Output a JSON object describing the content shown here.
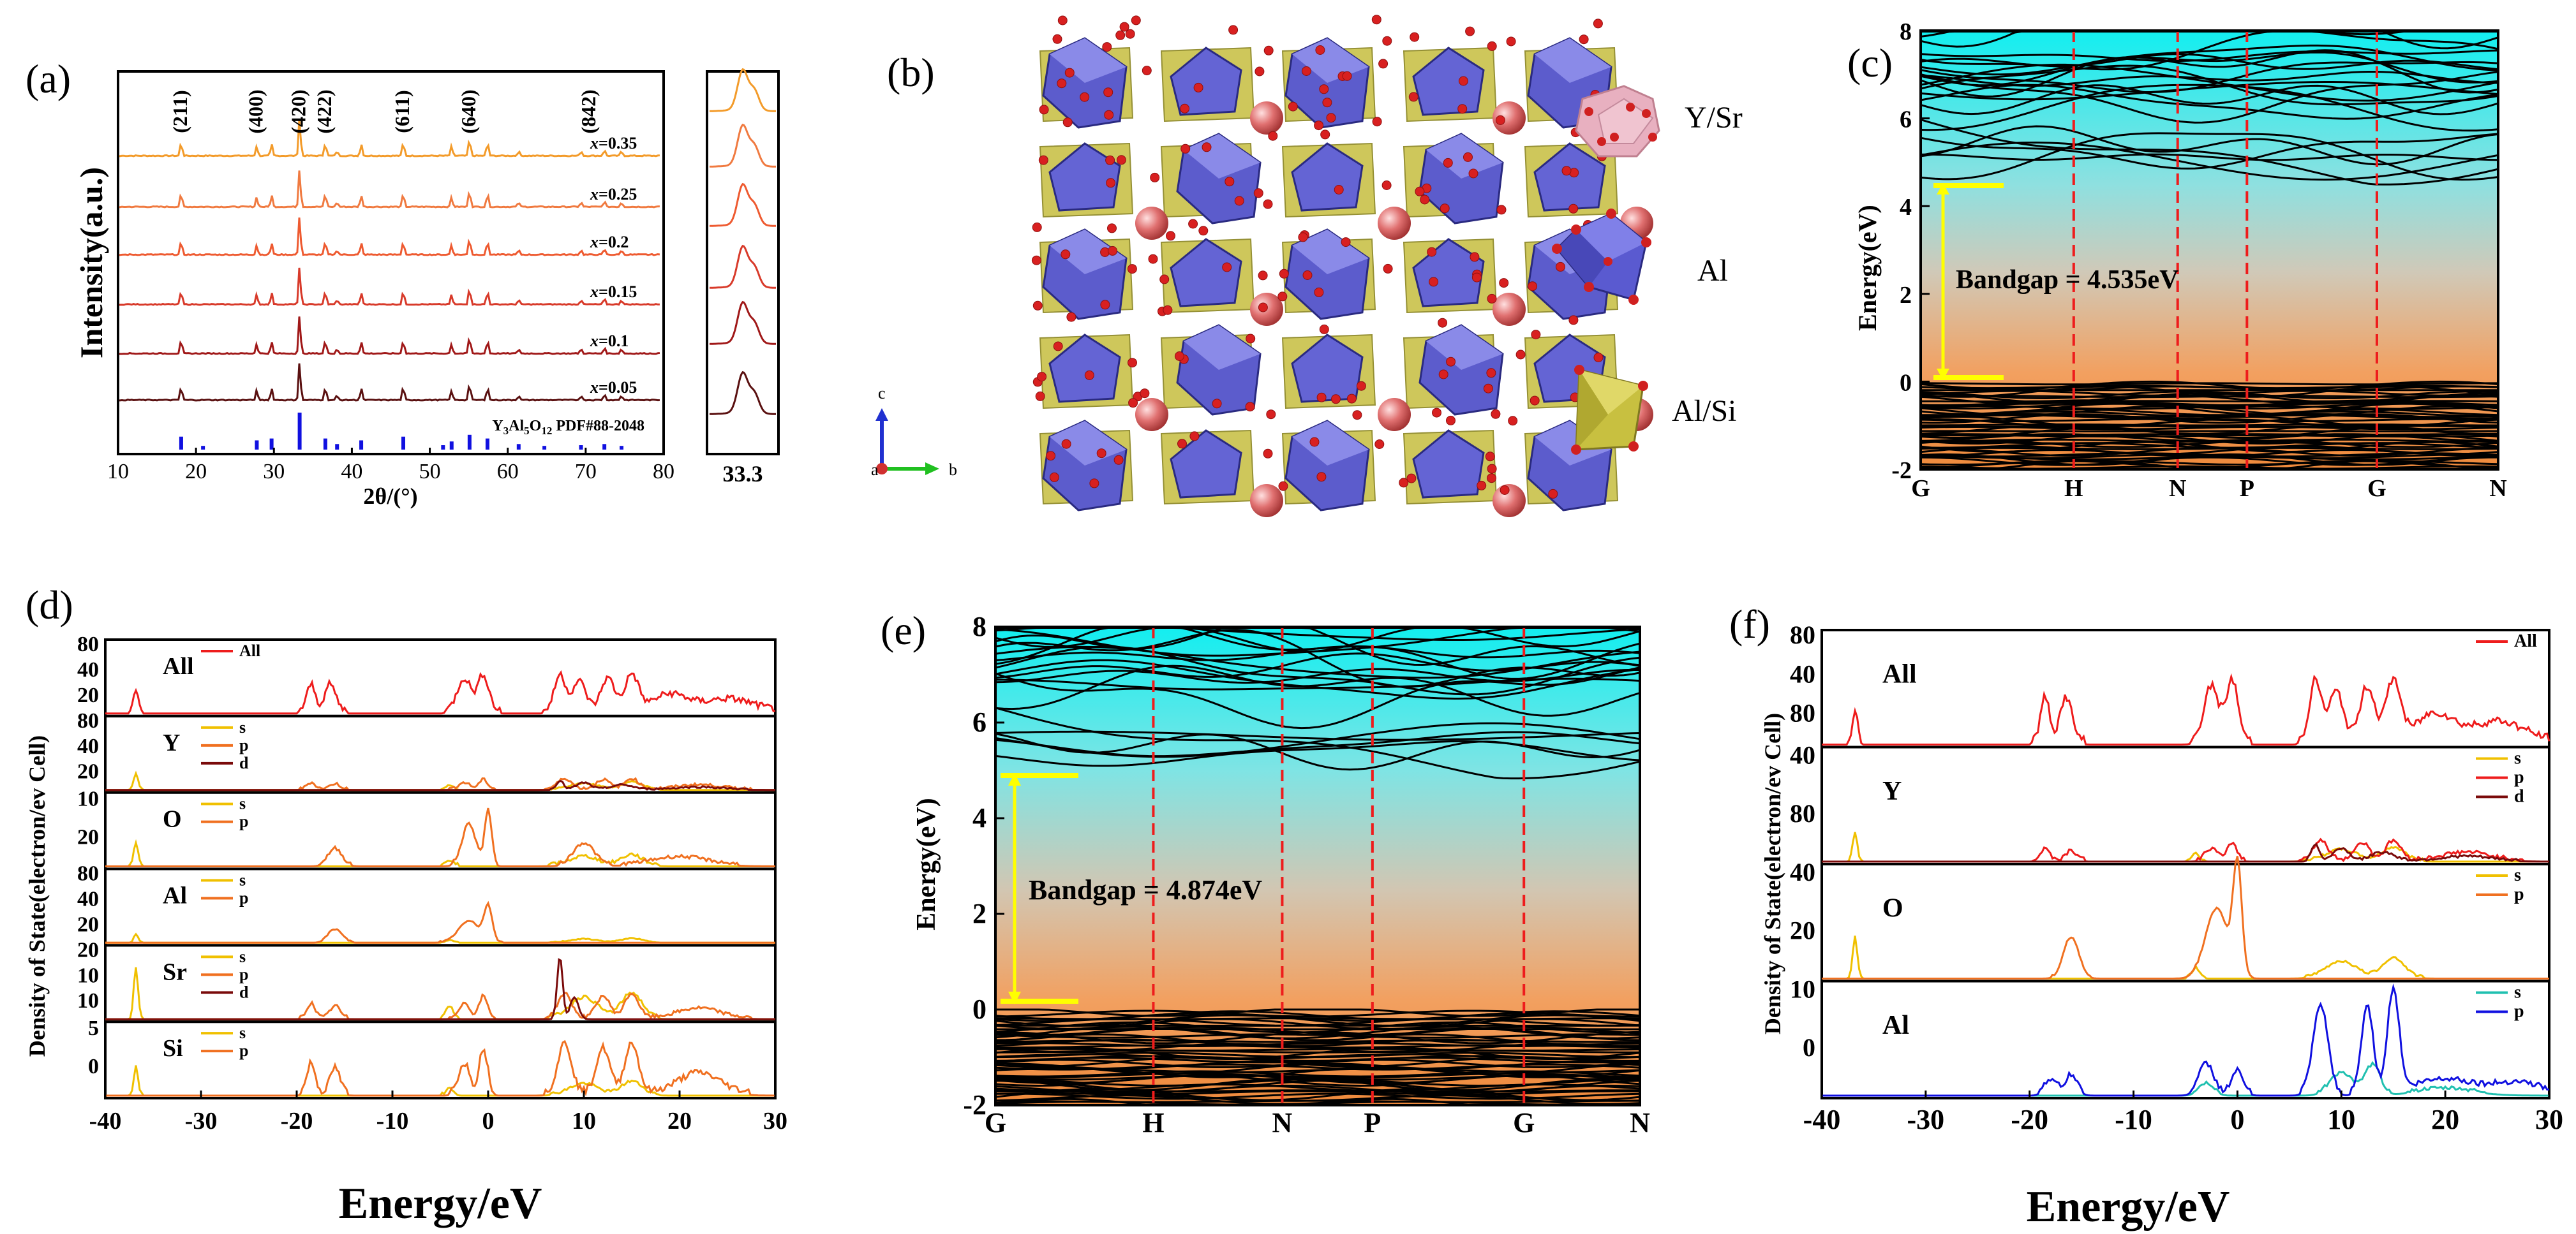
{
  "panels": {
    "a": "(a)",
    "b": "(b)",
    "c": "(c)",
    "d": "(d)",
    "e": "(e)",
    "f": "(f)"
  },
  "colors": {
    "red": "#ee1c1c",
    "orange": "#f07020",
    "yellow": "#f0c000",
    "darkred": "#7a0a0a",
    "cyan": "#20c0b0",
    "blue": "#1010e0",
    "xrd_ref": "#1010e0",
    "kline": "#ee1c1c",
    "gap_arrow": "#ffff00"
  },
  "structure": {
    "legend": [
      "Y/Sr",
      "Al",
      "Al/Si"
    ],
    "axes": {
      "c": "c",
      "a": "a",
      "b": "b"
    }
  },
  "chart_data": [
    {
      "type": "line",
      "title": "",
      "xlabel": "2θ/(°)",
      "ylabel": "Intensity(a.u.)",
      "xlim": [
        10,
        80
      ],
      "x_ticks": [
        "10",
        "20",
        "30",
        "40",
        "50",
        "60",
        "70",
        "80"
      ],
      "series": [
        {
          "name": "x=0.35",
          "color": "#f39b2a"
        },
        {
          "name": "x=0.25",
          "color": "#f07a40"
        },
        {
          "name": "x=0.2",
          "color": "#ee5a30"
        },
        {
          "name": "x=0.15",
          "color": "#d83a2a"
        },
        {
          "name": "x=0.1",
          "color": "#a01818"
        },
        {
          "name": "x=0.05",
          "color": "#5a1010"
        }
      ],
      "peak_labels": [
        {
          "label": "(211)",
          "x": 18.1
        },
        {
          "label": "(400)",
          "x": 27.8
        },
        {
          "label": "(420)",
          "x": 33.3
        },
        {
          "label": "(422)",
          "x": 36.6
        },
        {
          "label": "(611)",
          "x": 46.6
        },
        {
          "label": "(640)",
          "x": 55.1
        },
        {
          "label": "(842)",
          "x": 70.5
        }
      ],
      "peaks": [
        [
          18.1,
          0.35
        ],
        [
          27.8,
          0.25
        ],
        [
          29.7,
          0.3
        ],
        [
          33.3,
          1.0
        ],
        [
          36.6,
          0.35
        ],
        [
          38.1,
          0.12
        ],
        [
          41.2,
          0.3
        ],
        [
          46.6,
          0.35
        ],
        [
          52.8,
          0.25
        ],
        [
          55.1,
          0.45
        ],
        [
          57.4,
          0.35
        ],
        [
          61.4,
          0.12
        ],
        [
          69.4,
          0.12
        ],
        [
          72.4,
          0.15
        ],
        [
          74.6,
          0.12
        ]
      ],
      "reference": {
        "formula_1": "Y",
        "formula_2": "3",
        "formula_3": "Al",
        "formula_4": "5",
        "formula_5": "O",
        "formula_6": "12",
        "pdf": " PDF#88-2048",
        "sticks": [
          [
            18.1,
            0.35
          ],
          [
            20.9,
            0.1
          ],
          [
            27.8,
            0.25
          ],
          [
            29.7,
            0.3
          ],
          [
            33.3,
            1.0
          ],
          [
            36.6,
            0.3
          ],
          [
            38.1,
            0.15
          ],
          [
            41.2,
            0.25
          ],
          [
            46.6,
            0.35
          ],
          [
            51.7,
            0.12
          ],
          [
            52.8,
            0.22
          ],
          [
            55.1,
            0.4
          ],
          [
            57.4,
            0.3
          ],
          [
            61.4,
            0.15
          ],
          [
            64.7,
            0.1
          ],
          [
            69.4,
            0.12
          ],
          [
            72.4,
            0.15
          ],
          [
            74.6,
            0.1
          ]
        ]
      }
    },
    {
      "type": "line",
      "title": "",
      "x_tick": "33.3",
      "note": "zoom of (420) peak for six compositions"
    },
    {
      "type": "line",
      "title": "",
      "xlabel": "",
      "ylabel": "Energy(eV)",
      "ylim": [
        -2,
        8
      ],
      "y_ticks": [
        "-2",
        "0",
        "2",
        "4",
        "6",
        "8"
      ],
      "k_points": [
        "G",
        "H",
        "N",
        "P",
        "G",
        "N"
      ],
      "k_fractions": [
        0,
        0.265,
        0.445,
        0.565,
        0.79,
        1.0
      ],
      "cbm": 4.535,
      "vbm": 0,
      "annotation": "Bandgap = 4.535eV"
    },
    {
      "type": "line",
      "title": "",
      "xlabel": "Energy/eV",
      "ylabel": "Density of State(electron/ev Cell)",
      "xlim": [
        -40,
        30
      ],
      "x_ticks": [
        "-40",
        "-30",
        "-20",
        "-10",
        "0",
        "10",
        "20",
        "30"
      ],
      "subplots": [
        {
          "label": "All",
          "y_ticks": [
            "80",
            "40",
            "20"
          ],
          "ymax": 80,
          "legend": [
            {
              "name": "All",
              "color": "#ee1c1c"
            }
          ]
        },
        {
          "label": "Y",
          "y_ticks": [
            "80",
            "40",
            "20"
          ],
          "ymax": 80,
          "legend": [
            {
              "name": "s",
              "color": "#f0c000"
            },
            {
              "name": "p",
              "color": "#f07020"
            },
            {
              "name": "d",
              "color": "#7a0a0a"
            }
          ]
        },
        {
          "label": "O",
          "y_ticks": [
            "10",
            "20"
          ],
          "ymax": 20,
          "legend": [
            {
              "name": "s",
              "color": "#f0c000"
            },
            {
              "name": "p",
              "color": "#f07020"
            }
          ]
        },
        {
          "label": "Al",
          "y_ticks": [
            "80",
            "40",
            "20"
          ],
          "ymax": 80,
          "legend": [
            {
              "name": "s",
              "color": "#f0c000"
            },
            {
              "name": "p",
              "color": "#f07020"
            }
          ]
        },
        {
          "label": "Sr",
          "y_ticks": [
            "20",
            "10",
            "10"
          ],
          "ymax": 20,
          "legend": [
            {
              "name": "s",
              "color": "#f0c000"
            },
            {
              "name": "p",
              "color": "#f07020"
            },
            {
              "name": "d",
              "color": "#7a0a0a"
            }
          ]
        },
        {
          "label": "Si",
          "y_ticks": [
            "5",
            "0"
          ],
          "ymax": 5,
          "legend": [
            {
              "name": "s",
              "color": "#f0c000"
            },
            {
              "name": "p",
              "color": "#f07020"
            }
          ]
        }
      ]
    },
    {
      "type": "line",
      "title": "",
      "xlabel": "",
      "ylabel": "Energy(eV)",
      "ylim": [
        -2,
        8
      ],
      "y_ticks": [
        "-2",
        "0",
        "2",
        "4",
        "6",
        "8"
      ],
      "k_points": [
        "G",
        "H",
        "N",
        "P",
        "G",
        "N"
      ],
      "k_fractions": [
        0,
        0.245,
        0.445,
        0.585,
        0.82,
        1.0
      ],
      "cbm": 4.874,
      "vbm": 0,
      "annotation": "Bandgap = 4.874eV"
    },
    {
      "type": "line",
      "title": "",
      "xlabel": "Energy/eV",
      "ylabel": "Density of State(electron/ev Cell)",
      "xlim": [
        -40,
        30
      ],
      "x_ticks": [
        "-40",
        "-30",
        "-20",
        "-10",
        "0",
        "10",
        "20",
        "30"
      ],
      "subplots": [
        {
          "label": "All",
          "y_ticks": [
            "80",
            "40",
            "80"
          ],
          "ymax": 80,
          "legend": [
            {
              "name": "All",
              "color": "#ee1c1c"
            }
          ]
        },
        {
          "label": "Y",
          "y_ticks": [
            "40",
            "80"
          ],
          "ymax": 80,
          "legend": [
            {
              "name": "s",
              "color": "#f0c000"
            },
            {
              "name": "p",
              "color": "#ee1c1c"
            },
            {
              "name": "d",
              "color": "#7a0a0a"
            }
          ]
        },
        {
          "label": "O",
          "y_ticks": [
            "40",
            "20"
          ],
          "ymax": 40,
          "legend": [
            {
              "name": "s",
              "color": "#f0c000"
            },
            {
              "name": "p",
              "color": "#f07020"
            }
          ]
        },
        {
          "label": "Al",
          "y_ticks": [
            "10",
            "0"
          ],
          "ymax": 15,
          "legend": [
            {
              "name": "s",
              "color": "#20c0b0"
            },
            {
              "name": "p",
              "color": "#1010e0"
            }
          ]
        }
      ]
    }
  ]
}
